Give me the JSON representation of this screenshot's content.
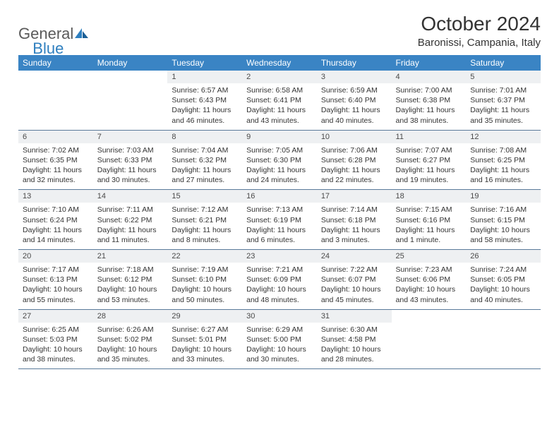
{
  "brand": {
    "name_part1": "General",
    "name_part2": "Blue"
  },
  "title": "October 2024",
  "location": "Baronissi, Campania, Italy",
  "colors": {
    "header_bg": "#3a84c4",
    "header_text": "#ffffff",
    "daynum_bg": "#eef0f2",
    "border": "#5a7a9a",
    "logo_gray": "#5a5a5a",
    "logo_blue": "#2e7fbf"
  },
  "day_names": [
    "Sunday",
    "Monday",
    "Tuesday",
    "Wednesday",
    "Thursday",
    "Friday",
    "Saturday"
  ],
  "weeks": [
    [
      {
        "n": "",
        "sr": "",
        "ss": "",
        "dl": ""
      },
      {
        "n": "",
        "sr": "",
        "ss": "",
        "dl": ""
      },
      {
        "n": "1",
        "sr": "Sunrise: 6:57 AM",
        "ss": "Sunset: 6:43 PM",
        "dl": "Daylight: 11 hours and 46 minutes."
      },
      {
        "n": "2",
        "sr": "Sunrise: 6:58 AM",
        "ss": "Sunset: 6:41 PM",
        "dl": "Daylight: 11 hours and 43 minutes."
      },
      {
        "n": "3",
        "sr": "Sunrise: 6:59 AM",
        "ss": "Sunset: 6:40 PM",
        "dl": "Daylight: 11 hours and 40 minutes."
      },
      {
        "n": "4",
        "sr": "Sunrise: 7:00 AM",
        "ss": "Sunset: 6:38 PM",
        "dl": "Daylight: 11 hours and 38 minutes."
      },
      {
        "n": "5",
        "sr": "Sunrise: 7:01 AM",
        "ss": "Sunset: 6:37 PM",
        "dl": "Daylight: 11 hours and 35 minutes."
      }
    ],
    [
      {
        "n": "6",
        "sr": "Sunrise: 7:02 AM",
        "ss": "Sunset: 6:35 PM",
        "dl": "Daylight: 11 hours and 32 minutes."
      },
      {
        "n": "7",
        "sr": "Sunrise: 7:03 AM",
        "ss": "Sunset: 6:33 PM",
        "dl": "Daylight: 11 hours and 30 minutes."
      },
      {
        "n": "8",
        "sr": "Sunrise: 7:04 AM",
        "ss": "Sunset: 6:32 PM",
        "dl": "Daylight: 11 hours and 27 minutes."
      },
      {
        "n": "9",
        "sr": "Sunrise: 7:05 AM",
        "ss": "Sunset: 6:30 PM",
        "dl": "Daylight: 11 hours and 24 minutes."
      },
      {
        "n": "10",
        "sr": "Sunrise: 7:06 AM",
        "ss": "Sunset: 6:28 PM",
        "dl": "Daylight: 11 hours and 22 minutes."
      },
      {
        "n": "11",
        "sr": "Sunrise: 7:07 AM",
        "ss": "Sunset: 6:27 PM",
        "dl": "Daylight: 11 hours and 19 minutes."
      },
      {
        "n": "12",
        "sr": "Sunrise: 7:08 AM",
        "ss": "Sunset: 6:25 PM",
        "dl": "Daylight: 11 hours and 16 minutes."
      }
    ],
    [
      {
        "n": "13",
        "sr": "Sunrise: 7:10 AM",
        "ss": "Sunset: 6:24 PM",
        "dl": "Daylight: 11 hours and 14 minutes."
      },
      {
        "n": "14",
        "sr": "Sunrise: 7:11 AM",
        "ss": "Sunset: 6:22 PM",
        "dl": "Daylight: 11 hours and 11 minutes."
      },
      {
        "n": "15",
        "sr": "Sunrise: 7:12 AM",
        "ss": "Sunset: 6:21 PM",
        "dl": "Daylight: 11 hours and 8 minutes."
      },
      {
        "n": "16",
        "sr": "Sunrise: 7:13 AM",
        "ss": "Sunset: 6:19 PM",
        "dl": "Daylight: 11 hours and 6 minutes."
      },
      {
        "n": "17",
        "sr": "Sunrise: 7:14 AM",
        "ss": "Sunset: 6:18 PM",
        "dl": "Daylight: 11 hours and 3 minutes."
      },
      {
        "n": "18",
        "sr": "Sunrise: 7:15 AM",
        "ss": "Sunset: 6:16 PM",
        "dl": "Daylight: 11 hours and 1 minute."
      },
      {
        "n": "19",
        "sr": "Sunrise: 7:16 AM",
        "ss": "Sunset: 6:15 PM",
        "dl": "Daylight: 10 hours and 58 minutes."
      }
    ],
    [
      {
        "n": "20",
        "sr": "Sunrise: 7:17 AM",
        "ss": "Sunset: 6:13 PM",
        "dl": "Daylight: 10 hours and 55 minutes."
      },
      {
        "n": "21",
        "sr": "Sunrise: 7:18 AM",
        "ss": "Sunset: 6:12 PM",
        "dl": "Daylight: 10 hours and 53 minutes."
      },
      {
        "n": "22",
        "sr": "Sunrise: 7:19 AM",
        "ss": "Sunset: 6:10 PM",
        "dl": "Daylight: 10 hours and 50 minutes."
      },
      {
        "n": "23",
        "sr": "Sunrise: 7:21 AM",
        "ss": "Sunset: 6:09 PM",
        "dl": "Daylight: 10 hours and 48 minutes."
      },
      {
        "n": "24",
        "sr": "Sunrise: 7:22 AM",
        "ss": "Sunset: 6:07 PM",
        "dl": "Daylight: 10 hours and 45 minutes."
      },
      {
        "n": "25",
        "sr": "Sunrise: 7:23 AM",
        "ss": "Sunset: 6:06 PM",
        "dl": "Daylight: 10 hours and 43 minutes."
      },
      {
        "n": "26",
        "sr": "Sunrise: 7:24 AM",
        "ss": "Sunset: 6:05 PM",
        "dl": "Daylight: 10 hours and 40 minutes."
      }
    ],
    [
      {
        "n": "27",
        "sr": "Sunrise: 6:25 AM",
        "ss": "Sunset: 5:03 PM",
        "dl": "Daylight: 10 hours and 38 minutes."
      },
      {
        "n": "28",
        "sr": "Sunrise: 6:26 AM",
        "ss": "Sunset: 5:02 PM",
        "dl": "Daylight: 10 hours and 35 minutes."
      },
      {
        "n": "29",
        "sr": "Sunrise: 6:27 AM",
        "ss": "Sunset: 5:01 PM",
        "dl": "Daylight: 10 hours and 33 minutes."
      },
      {
        "n": "30",
        "sr": "Sunrise: 6:29 AM",
        "ss": "Sunset: 5:00 PM",
        "dl": "Daylight: 10 hours and 30 minutes."
      },
      {
        "n": "31",
        "sr": "Sunrise: 6:30 AM",
        "ss": "Sunset: 4:58 PM",
        "dl": "Daylight: 10 hours and 28 minutes."
      },
      {
        "n": "",
        "sr": "",
        "ss": "",
        "dl": ""
      },
      {
        "n": "",
        "sr": "",
        "ss": "",
        "dl": ""
      }
    ]
  ]
}
